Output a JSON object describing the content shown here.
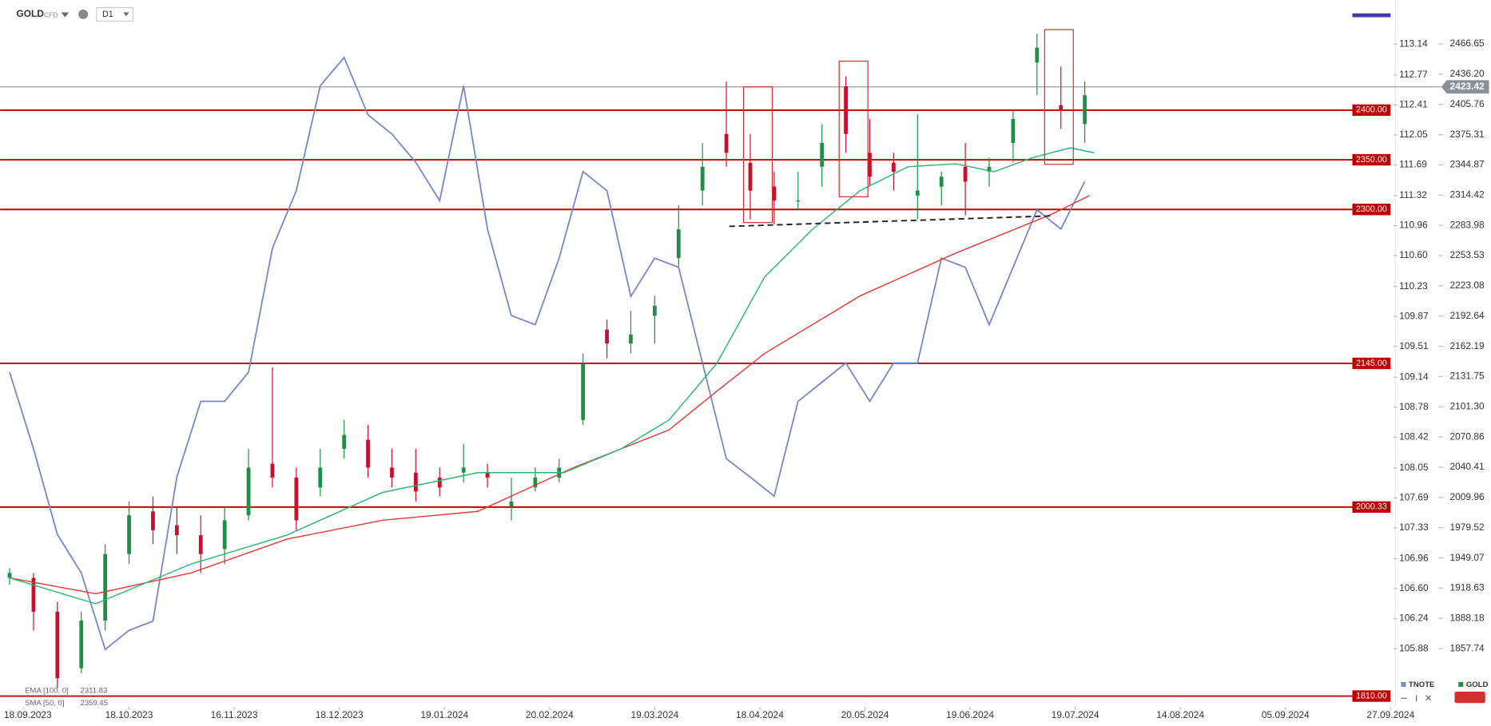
{
  "chart_data": {
    "type": "candlestick",
    "symbol": "GOLD",
    "market": "CFD",
    "timeframe": "D1",
    "x": [
      2,
      7,
      12,
      17,
      22,
      27,
      32,
      37,
      42,
      47,
      52,
      57,
      62,
      67,
      72,
      77,
      82,
      87,
      92,
      97,
      102,
      107,
      112,
      117,
      122,
      127,
      132,
      137,
      142,
      147,
      152,
      157,
      162,
      167,
      172,
      177,
      182,
      187,
      192,
      197,
      202,
      207,
      212,
      217,
      222,
      227
    ],
    "xlim": [
      0,
      291
    ],
    "xticks": [
      {
        "value": 5,
        "label": "18.09.2023"
      },
      {
        "value": 27,
        "label": "18.10.2023"
      },
      {
        "value": 49,
        "label": "16.11.2023"
      },
      {
        "value": 71,
        "label": "18.12.2023"
      },
      {
        "value": 93,
        "label": "19.01.2024"
      },
      {
        "value": 115,
        "label": "20.02.2024"
      },
      {
        "value": 137,
        "label": "19.03.2024"
      },
      {
        "value": 159,
        "label": "18.04.2024"
      },
      {
        "value": 181,
        "label": "20.05.2024"
      },
      {
        "value": 203,
        "label": "19.06.2024"
      },
      {
        "value": 225,
        "label": "19.07.2024"
      },
      {
        "value": 247,
        "label": "14.08.2024"
      },
      {
        "value": 269,
        "label": "05.09.2024"
      },
      {
        "value": 291,
        "label": "27.09.2024"
      }
    ],
    "ylim": [
      1799.1,
      2510.9
    ],
    "yticks": [
      2466.65,
      {
        "value": 2436.2,
        "label": "2436.20"
      },
      2405.76,
      2375.31,
      2344.87,
      2314.42,
      2283.98,
      2253.53,
      2223.08,
      2192.64,
      2162.19,
      2131.75,
      {
        "value": 2101.3,
        "label": "2101.30"
      },
      2070.86,
      2040.41,
      2009.96,
      1979.52,
      1949.07,
      1918.63,
      1888.18,
      1857.74
    ],
    "y2lim": [
      105.18,
      113.67
    ],
    "y2ticks": [
      113.14,
      112.77,
      112.41,
      112.05,
      111.69,
      111.32,
      110.96,
      {
        "value": 110.6,
        "label": "110.60"
      },
      110.23,
      109.87,
      109.51,
      109.14,
      108.78,
      108.42,
      108.05,
      107.69,
      107.33,
      106.96,
      {
        "value": 106.6,
        "label": "106.60"
      },
      106.24,
      105.88
    ],
    "series": [
      {
        "name": "GOLD",
        "up_color": "#1f8f45",
        "down_color": "#c8102e",
        "open": [
          1929,
          1929,
          1895,
          1838,
          1886,
          1953,
          1996,
          1982,
          1972,
          1958,
          1992,
          2044,
          2030,
          2020,
          2059,
          2068,
          2040,
          2035,
          2030,
          2035,
          2035,
          2001,
          2020,
          2030,
          2088,
          2179,
          2165,
          2193,
          2251,
          2319,
          2376,
          2347,
          2323,
          2309,
          2343,
          2424,
          2357,
          2347,
          2314,
          2323,
          2343,
          2338,
          2367,
          2448,
          2405,
          2386
        ],
        "high": [
          1939,
          1934,
          1905,
          1895,
          1963,
          2006,
          2011,
          2001,
          1992,
          2001,
          2059,
          2141,
          2040,
          2059,
          2088,
          2083,
          2059,
          2059,
          2040,
          2064,
          2044,
          2030,
          2040,
          2049,
          2155,
          2189,
          2198,
          2213,
          2304,
          2367,
          2429,
          2376,
          2338,
          2338,
          2386,
          2434,
          2391,
          2357,
          2396,
          2338,
          2367,
          2352,
          2400,
          2477,
          2444,
          2429
        ],
        "low": [
          1922,
          1876,
          1818,
          1833,
          1876,
          1943,
          1963,
          1953,
          1934,
          1943,
          1987,
          2020,
          1977,
          2011,
          2049,
          2030,
          2020,
          2006,
          2011,
          2025,
          2020,
          1987,
          2016,
          2025,
          2083,
          2150,
          2155,
          2165,
          2242,
          2304,
          2343,
          2290,
          2285,
          2299,
          2323,
          2357,
          2323,
          2319,
          2290,
          2304,
          2294,
          2323,
          2347,
          2415,
          2381,
          2367
        ],
        "close": [
          1934,
          1895,
          1828,
          1886,
          1953,
          1992,
          1977,
          1972,
          1953,
          1987,
          2040,
          2030,
          1987,
          2040,
          2073,
          2040,
          2030,
          2016,
          2020,
          2040,
          2030,
          2006,
          2030,
          2040,
          2145,
          2165,
          2174,
          2203,
          2280,
          2343,
          2357,
          2319,
          2309,
          2309,
          2367,
          2376,
          2333,
          2338,
          2319,
          2333,
          2328,
          2343,
          2391,
          2463,
          2400,
          2415
        ]
      },
      {
        "name": "TNOTE",
        "axis": "y2",
        "color": "#7b83cc",
        "values": [
          109.2,
          108.28,
          107.25,
          106.79,
          105.87,
          106.1,
          106.21,
          107.94,
          108.85,
          108.85,
          109.2,
          110.69,
          111.38,
          112.64,
          112.98,
          112.29,
          112.06,
          111.72,
          111.26,
          112.64,
          110.92,
          109.88,
          109.77,
          110.57,
          111.61,
          111.38,
          110.11,
          110.57,
          110.46,
          109.31,
          108.16,
          107.94,
          107.71,
          108.85,
          109.08,
          109.31,
          108.85,
          109.31,
          109.31,
          110.57,
          110.46,
          109.77,
          110.46,
          111.15,
          110.92,
          111.49
        ]
      }
    ],
    "indicators": [
      {
        "name": "EMA [100, 0]",
        "value": 2311.83,
        "color": "#e53935",
        "x": [
          2,
          20,
          40,
          60,
          80,
          100,
          120,
          140,
          150,
          160,
          180,
          200,
          220,
          228
        ],
        "values": [
          1929,
          1913,
          1934,
          1968,
          1987,
          1996,
          2040,
          2078,
          2117,
          2155,
          2213,
          2256,
          2295,
          2314
        ]
      },
      {
        "name": "SMA [50, 0]",
        "value": 2359.45,
        "color": "#2bb673",
        "x": [
          2,
          20,
          40,
          60,
          80,
          100,
          118,
          130,
          140,
          150,
          160,
          170,
          180,
          190,
          200,
          208,
          216,
          224,
          229
        ],
        "values": [
          1929,
          1903,
          1943,
          1972,
          2015,
          2035,
          2035,
          2059,
          2088,
          2145,
          2232,
          2280,
          2319,
          2343,
          2346,
          2338,
          2352,
          2362,
          2357
        ]
      }
    ],
    "levels": [
      {
        "value": 2400,
        "label": "2400.00"
      },
      {
        "value": 2350,
        "label": "2350.00"
      },
      {
        "value": 2300,
        "label": "2300.00"
      },
      {
        "value": 2145,
        "label": "2145.00"
      },
      2000.33,
      {
        "value": 1810,
        "label": "1810.00"
      }
    ],
    "level_color": "#c00000",
    "last_price": 2423.42
  }
}
